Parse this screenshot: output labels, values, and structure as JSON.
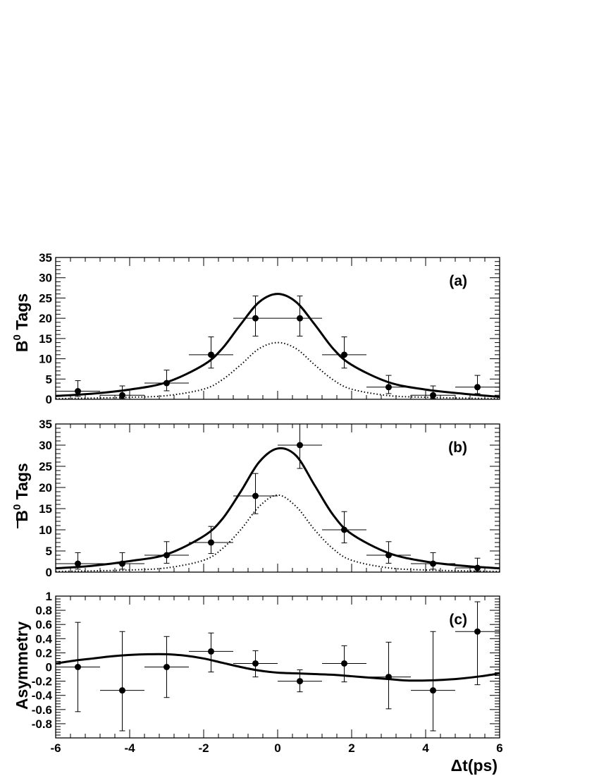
{
  "chart_data": [
    {
      "type": "scatter",
      "panel_label": "(a)",
      "ylabel_main": "B",
      "ylabel_sup": "0",
      "ylabel_rest": " Tags",
      "ylim": [
        0,
        35
      ],
      "xlim": [
        -6,
        6
      ],
      "yticks": [
        0,
        5,
        10,
        15,
        20,
        25,
        30,
        35
      ],
      "ytick_labels": [
        "0",
        "5",
        "10",
        "15",
        "20",
        "25",
        "30",
        "35"
      ],
      "points": [
        {
          "x": -5.4,
          "y": 2,
          "xerr": 0.6,
          "yerr": [
            1.3,
            2.6
          ]
        },
        {
          "x": -4.2,
          "y": 1,
          "xerr": 0.6,
          "yerr": [
            0.8,
            2.3
          ]
        },
        {
          "x": -3.0,
          "y": 4,
          "xerr": 0.6,
          "yerr": [
            1.9,
            3.2
          ]
        },
        {
          "x": -1.8,
          "y": 11,
          "xerr": 0.6,
          "yerr": [
            3.3,
            4.4
          ]
        },
        {
          "x": -0.6,
          "y": 20,
          "xerr": 0.6,
          "yerr": [
            4.4,
            5.5
          ]
        },
        {
          "x": 0.6,
          "y": 20,
          "xerr": 0.6,
          "yerr": [
            4.4,
            5.5
          ]
        },
        {
          "x": 1.8,
          "y": 11,
          "xerr": 0.6,
          "yerr": [
            3.3,
            4.4
          ]
        },
        {
          "x": 3.0,
          "y": 3,
          "xerr": 0.6,
          "yerr": [
            1.6,
            2.9
          ]
        },
        {
          "x": 4.2,
          "y": 1,
          "xerr": 0.6,
          "yerr": [
            0.8,
            2.3
          ]
        },
        {
          "x": 5.4,
          "y": 3,
          "xerr": 0.6,
          "yerr": [
            1.6,
            2.9
          ]
        }
      ],
      "curves": [
        {
          "style": "solid",
          "points": [
            [
              -6,
              0.8
            ],
            [
              -5,
              1.4
            ],
            [
              -4,
              2.4
            ],
            [
              -3,
              4.2
            ],
            [
              -2,
              8.5
            ],
            [
              -1.5,
              12.5
            ],
            [
              -1,
              18.5
            ],
            [
              -0.5,
              24
            ],
            [
              0,
              26
            ],
            [
              0.5,
              24
            ],
            [
              1,
              18.5
            ],
            [
              1.5,
              12.5
            ],
            [
              2,
              8.5
            ],
            [
              3,
              4.2
            ],
            [
              4,
              2.4
            ],
            [
              5,
              1.4
            ],
            [
              6,
              0.6
            ]
          ]
        },
        {
          "style": "dotted",
          "points": [
            [
              -6,
              0.15
            ],
            [
              -5,
              0.3
            ],
            [
              -4,
              0.5
            ],
            [
              -3,
              0.9
            ],
            [
              -2,
              2.5
            ],
            [
              -1.5,
              4.8
            ],
            [
              -1,
              8.5
            ],
            [
              -0.5,
              12.5
            ],
            [
              0,
              14
            ],
            [
              0.5,
              12.5
            ],
            [
              1,
              8.5
            ],
            [
              1.5,
              4.8
            ],
            [
              2,
              2.5
            ],
            [
              3,
              0.9
            ],
            [
              4,
              0.5
            ],
            [
              5,
              0.3
            ],
            [
              6,
              0.15
            ]
          ]
        }
      ]
    },
    {
      "type": "scatter",
      "panel_label": "(b)",
      "ylabel_main": "B",
      "ylabel_sup": "0",
      "ylabel_rest": " Tags",
      "ylabel_bar": true,
      "ylim": [
        0,
        35
      ],
      "xlim": [
        -6,
        6
      ],
      "yticks": [
        0,
        5,
        10,
        15,
        20,
        25,
        30,
        35
      ],
      "ytick_labels": [
        "0",
        "5",
        "10",
        "15",
        "20",
        "25",
        "30",
        "35"
      ],
      "points": [
        {
          "x": -5.4,
          "y": 2,
          "xerr": 0.6,
          "yerr": [
            1.3,
            2.6
          ]
        },
        {
          "x": -4.2,
          "y": 2,
          "xerr": 0.6,
          "yerr": [
            1.3,
            2.6
          ]
        },
        {
          "x": -3.0,
          "y": 4,
          "xerr": 0.6,
          "yerr": [
            1.9,
            3.2
          ]
        },
        {
          "x": -1.8,
          "y": 7,
          "xerr": 0.6,
          "yerr": [
            2.6,
            3.8
          ]
        },
        {
          "x": -0.6,
          "y": 18,
          "xerr": 0.6,
          "yerr": [
            4.2,
            5.3
          ]
        },
        {
          "x": 0.6,
          "y": 30,
          "xerr": 0.6,
          "yerr": [
            5.5,
            6.6
          ]
        },
        {
          "x": 1.8,
          "y": 10,
          "xerr": 0.6,
          "yerr": [
            3.1,
            4.3
          ]
        },
        {
          "x": 3.0,
          "y": 4,
          "xerr": 0.6,
          "yerr": [
            1.9,
            3.2
          ]
        },
        {
          "x": 4.2,
          "y": 2,
          "xerr": 0.6,
          "yerr": [
            1.3,
            2.6
          ]
        },
        {
          "x": 5.4,
          "y": 1,
          "xerr": 0.6,
          "yerr": [
            0.8,
            2.3
          ]
        }
      ],
      "curves": [
        {
          "style": "solid",
          "points": [
            [
              -6,
              0.9
            ],
            [
              -5,
              1.5
            ],
            [
              -4,
              2.6
            ],
            [
              -3,
              4.2
            ],
            [
              -2,
              8.5
            ],
            [
              -1.5,
              12.5
            ],
            [
              -1,
              19
            ],
            [
              -0.5,
              26
            ],
            [
              0,
              29.2
            ],
            [
              0.5,
              27.5
            ],
            [
              1,
              20.5
            ],
            [
              1.5,
              13.5
            ],
            [
              2,
              9
            ],
            [
              3,
              4.5
            ],
            [
              4,
              2.5
            ],
            [
              5,
              1.5
            ],
            [
              6,
              0.9
            ]
          ]
        },
        {
          "style": "dotted",
          "points": [
            [
              -6,
              0.15
            ],
            [
              -5,
              0.3
            ],
            [
              -4,
              0.5
            ],
            [
              -3,
              1.0
            ],
            [
              -2,
              2.8
            ],
            [
              -1.5,
              5.5
            ],
            [
              -1,
              10
            ],
            [
              -0.5,
              15.5
            ],
            [
              0,
              18.2
            ],
            [
              0.5,
              15.5
            ],
            [
              1,
              10
            ],
            [
              1.5,
              5.5
            ],
            [
              2,
              2.8
            ],
            [
              3,
              1.0
            ],
            [
              4,
              0.5
            ],
            [
              5,
              0.3
            ],
            [
              6,
              0.15
            ]
          ]
        }
      ]
    },
    {
      "type": "scatter",
      "panel_label": "(c)",
      "ylabel_main": "Asymmetry",
      "ylim": [
        -1,
        1
      ],
      "xlim": [
        -6,
        6
      ],
      "yticks": [
        -0.8,
        -0.6,
        -0.4,
        -0.2,
        0,
        0.2,
        0.4,
        0.6,
        0.8,
        1
      ],
      "ytick_labels": [
        "-0.8",
        "-0.6",
        "-0.4",
        "-0.2",
        "0",
        "0.2",
        "0.4",
        "0.6",
        "0.8",
        "1"
      ],
      "xticks": [
        -6,
        -4,
        -2,
        0,
        2,
        4,
        6
      ],
      "xtick_labels": [
        "-6",
        "-4",
        "-2",
        "0",
        "2",
        "4",
        "6"
      ],
      "xlabel": "Δt(ps)",
      "points": [
        {
          "x": -5.4,
          "y": 0,
          "xerr": 0.6,
          "yerr": [
            0.63,
            0.63
          ]
        },
        {
          "x": -4.2,
          "y": -0.33,
          "xerr": 0.6,
          "yerr": [
            0.57,
            0.83
          ]
        },
        {
          "x": -3.0,
          "y": 0,
          "xerr": 0.6,
          "yerr": [
            0.43,
            0.43
          ]
        },
        {
          "x": -1.8,
          "y": 0.22,
          "xerr": 0.6,
          "yerr": [
            0.29,
            0.26
          ]
        },
        {
          "x": -0.6,
          "y": 0.05,
          "xerr": 0.6,
          "yerr": [
            0.19,
            0.18
          ]
        },
        {
          "x": 0.6,
          "y": -0.2,
          "xerr": 0.6,
          "yerr": [
            0.15,
            0.16
          ]
        },
        {
          "x": 1.8,
          "y": 0.05,
          "xerr": 0.6,
          "yerr": [
            0.26,
            0.25
          ]
        },
        {
          "x": 3.0,
          "y": -0.14,
          "xerr": 0.6,
          "yerr": [
            0.45,
            0.49
          ]
        },
        {
          "x": 4.2,
          "y": -0.33,
          "xerr": 0.6,
          "yerr": [
            0.57,
            0.83
          ]
        },
        {
          "x": 5.4,
          "y": 0.5,
          "xerr": 0.6,
          "yerr": [
            0.75,
            0.42
          ]
        }
      ],
      "curves": [
        {
          "style": "solid",
          "points": [
            [
              -6,
              0.05
            ],
            [
              -5.5,
              0.09
            ],
            [
              -5,
              0.12
            ],
            [
              -4.5,
              0.15
            ],
            [
              -4,
              0.17
            ],
            [
              -3.5,
              0.18
            ],
            [
              -3,
              0.18
            ],
            [
              -2.5,
              0.16
            ],
            [
              -2,
              0.12
            ],
            [
              -1.5,
              0.06
            ],
            [
              -1,
              0.0
            ],
            [
              -0.5,
              -0.05
            ],
            [
              0,
              -0.08
            ],
            [
              0.5,
              -0.09
            ],
            [
              1,
              -0.1
            ],
            [
              1.5,
              -0.11
            ],
            [
              2,
              -0.13
            ],
            [
              2.5,
              -0.15
            ],
            [
              3,
              -0.17
            ],
            [
              3.5,
              -0.19
            ],
            [
              4,
              -0.19
            ],
            [
              4.5,
              -0.18
            ],
            [
              5,
              -0.16
            ],
            [
              5.5,
              -0.13
            ],
            [
              6,
              -0.09
            ]
          ]
        }
      ]
    }
  ]
}
